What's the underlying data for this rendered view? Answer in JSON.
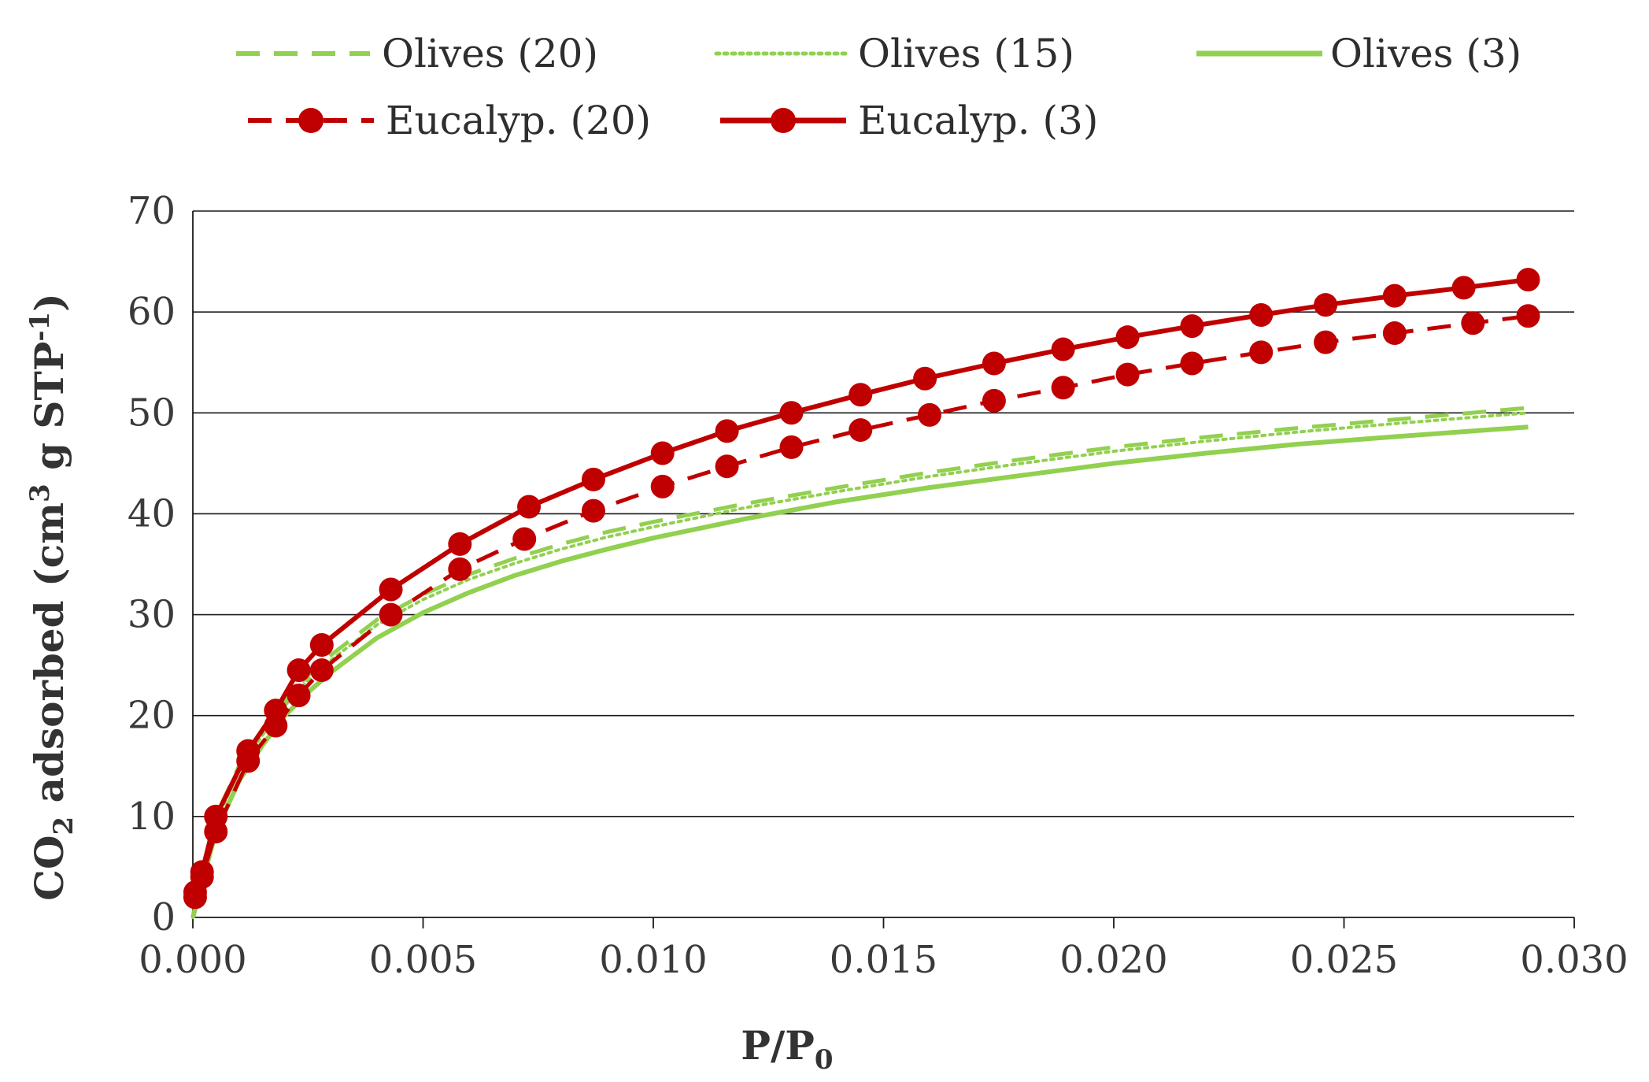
{
  "chart_data": {
    "type": "line",
    "title": "",
    "xlabel": "P/P0",
    "xlabel_main": "P/P",
    "xlabel_sub": "0",
    "ylabel": "CO2 adsorbed (cm3 g STP-1)",
    "ylabel_parts": {
      "a": "CO",
      "a_sub": "2",
      "b": " adsorbed (cm",
      "b_sup": "3",
      "c": "  g STP",
      "c_sup": "-1",
      "d": ")"
    },
    "xlim": [
      0.0,
      0.03
    ],
    "ylim": [
      0,
      70
    ],
    "grid": "horizontal",
    "legend_position": "top",
    "x_ticks": [
      0.0,
      0.005,
      0.01,
      0.015,
      0.02,
      0.025,
      0.03
    ],
    "x_tick_labels": [
      "0.000",
      "0.005",
      "0.010",
      "0.015",
      "0.020",
      "0.025",
      "0.030"
    ],
    "y_ticks": [
      0,
      10,
      20,
      30,
      40,
      50,
      60,
      70
    ],
    "y_tick_labels": [
      "0",
      "10",
      "20",
      "30",
      "40",
      "50",
      "60",
      "70"
    ],
    "series": [
      {
        "name": "Olives (20)",
        "color": "#92d050",
        "style": "dashed",
        "markers": false,
        "x": [
          0.0,
          0.0005,
          0.001,
          0.0015,
          0.002,
          0.0025,
          0.003,
          0.004,
          0.005,
          0.006,
          0.007,
          0.008,
          0.009,
          0.01,
          0.012,
          0.014,
          0.016,
          0.018,
          0.02,
          0.022,
          0.024,
          0.026,
          0.029
        ],
        "y": [
          0,
          10,
          15,
          18.5,
          21.5,
          24,
          26,
          29.5,
          32,
          34,
          35.6,
          37,
          38.2,
          39.2,
          41,
          42.6,
          44.1,
          45.4,
          46.6,
          47.6,
          48.5,
          49.3,
          50.5
        ]
      },
      {
        "name": "Olives (15)",
        "color": "#92d050",
        "style": "dotted",
        "markers": false,
        "x": [
          0.0,
          0.0005,
          0.001,
          0.0015,
          0.002,
          0.0025,
          0.003,
          0.004,
          0.005,
          0.006,
          0.007,
          0.008,
          0.009,
          0.01,
          0.012,
          0.014,
          0.016,
          0.018,
          0.02,
          0.022,
          0.024,
          0.026,
          0.029
        ],
        "y": [
          0,
          9.5,
          14.5,
          18,
          21,
          23.5,
          25.5,
          29,
          31.5,
          33.5,
          35.1,
          36.5,
          37.7,
          38.7,
          40.6,
          42.2,
          43.7,
          45,
          46.2,
          47.2,
          48.1,
          48.9,
          50
        ]
      },
      {
        "name": "Olives (3)",
        "color": "#92d050",
        "style": "solid",
        "markers": false,
        "x": [
          0.0,
          0.0005,
          0.001,
          0.0015,
          0.002,
          0.0025,
          0.003,
          0.004,
          0.005,
          0.006,
          0.007,
          0.008,
          0.009,
          0.01,
          0.012,
          0.014,
          0.016,
          0.018,
          0.02,
          0.022,
          0.024,
          0.026,
          0.029
        ],
        "y": [
          0,
          8.5,
          13.5,
          17,
          20,
          22.3,
          24.3,
          27.7,
          30.2,
          32.2,
          33.9,
          35.3,
          36.5,
          37.6,
          39.5,
          41.2,
          42.6,
          43.8,
          45,
          46,
          46.9,
          47.6,
          48.6
        ]
      },
      {
        "name": "Eucalyp. (20)",
        "color": "#c00000",
        "style": "dashed",
        "markers": true,
        "x": [
          5e-05,
          0.0002,
          0.0005,
          0.0012,
          0.0018,
          0.0023,
          0.0028,
          0.0043,
          0.0058,
          0.0072,
          0.0087,
          0.0102,
          0.0116,
          0.013,
          0.0145,
          0.016,
          0.0174,
          0.0189,
          0.0203,
          0.0217,
          0.0232,
          0.0246,
          0.0261,
          0.0278,
          0.029
        ],
        "y": [
          2,
          4,
          8.5,
          15.5,
          19,
          22,
          24.5,
          30,
          34.5,
          37.5,
          40.3,
          42.7,
          44.7,
          46.6,
          48.3,
          49.8,
          51.2,
          52.5,
          53.8,
          54.9,
          56,
          57,
          57.9,
          58.9,
          59.6
        ]
      },
      {
        "name": "Eucalyp. (3)",
        "color": "#c00000",
        "style": "solid",
        "markers": true,
        "x": [
          5e-05,
          0.0002,
          0.0005,
          0.0012,
          0.0018,
          0.0023,
          0.0028,
          0.0043,
          0.0058,
          0.0073,
          0.0087,
          0.0102,
          0.0116,
          0.013,
          0.0145,
          0.0159,
          0.0174,
          0.0189,
          0.0203,
          0.0217,
          0.0232,
          0.0246,
          0.0261,
          0.0276,
          0.029
        ],
        "y": [
          2.5,
          4.5,
          10,
          16.5,
          20.5,
          24.5,
          27,
          32.5,
          37,
          40.7,
          43.4,
          46,
          48.2,
          50,
          51.8,
          53.4,
          54.9,
          56.3,
          57.5,
          58.6,
          59.7,
          60.7,
          61.6,
          62.4,
          63.2
        ]
      }
    ]
  }
}
